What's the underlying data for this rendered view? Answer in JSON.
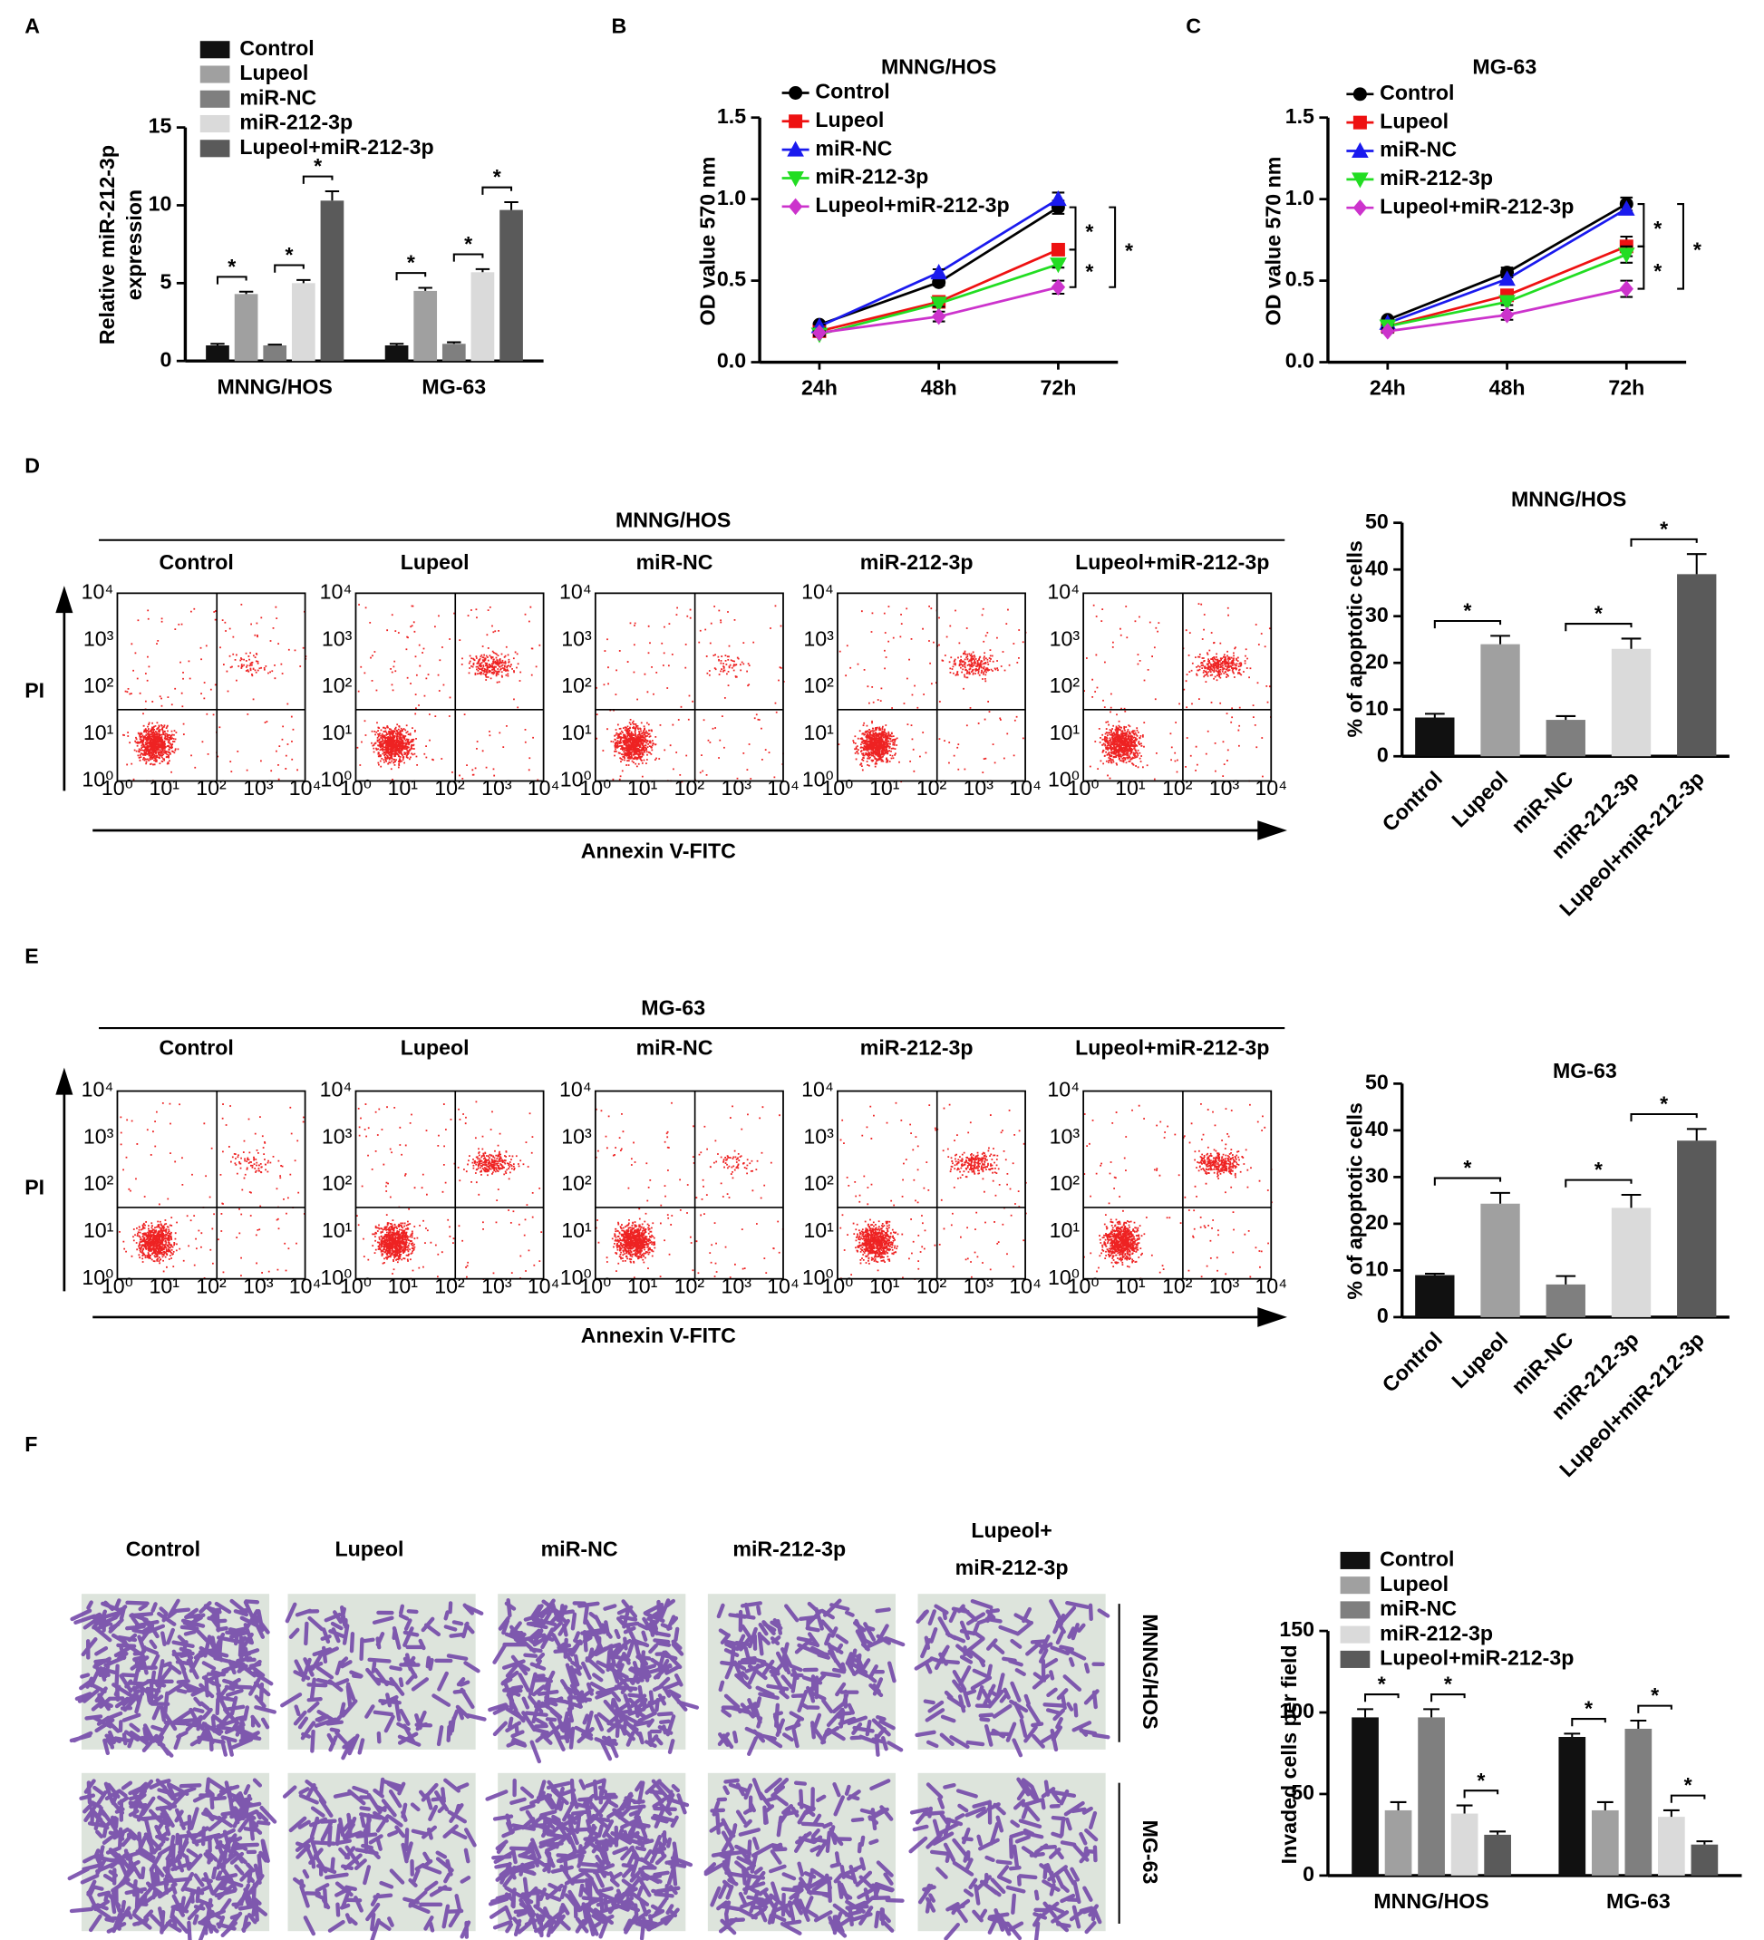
{
  "chart_data": [
    {
      "type": "bar",
      "ylabel": [
        "Relative miR-212-3p",
        "expression"
      ],
      "categories": [
        "MNNG/HOS",
        "MG-63"
      ],
      "series": [
        {
          "name": "Control",
          "color": "#111111",
          "values": [
            1.0,
            1.0
          ],
          "errors": [
            0.1,
            0.1
          ]
        },
        {
          "name": "Lupeol",
          "color": "#a0a0a0",
          "values": [
            4.3,
            4.5
          ],
          "errors": [
            0.15,
            0.2
          ]
        },
        {
          "name": "miR-NC",
          "color": "#7f7f7f",
          "values": [
            1.0,
            1.1
          ],
          "errors": [
            0.05,
            0.1
          ]
        },
        {
          "name": "miR-212-3p",
          "color": "#dadada",
          "values": [
            5.0,
            5.7
          ],
          "errors": [
            0.2,
            0.2
          ]
        },
        {
          "name": "Lupeol+miR-212-3p",
          "color": "#5a5a5a",
          "values": [
            10.3,
            9.7
          ],
          "errors": [
            0.6,
            0.5
          ]
        }
      ],
      "ylim": [
        0,
        15
      ],
      "yticks": [
        0,
        5,
        10,
        15
      ],
      "legend": "upper left",
      "significance": [
        {
          "category": 0,
          "between": [
            0,
            1
          ],
          "label": "*"
        },
        {
          "category": 0,
          "between": [
            2,
            3
          ],
          "label": "*"
        },
        {
          "category": 0,
          "between": [
            3,
            4
          ],
          "label": "*"
        },
        {
          "category": 1,
          "between": [
            0,
            1
          ],
          "label": "*"
        },
        {
          "category": 1,
          "between": [
            2,
            3
          ],
          "label": "*"
        },
        {
          "category": 1,
          "between": [
            3,
            4
          ],
          "label": "*"
        }
      ]
    },
    {
      "type": "line",
      "title": "MNNG/HOS",
      "ylabel": "OD value 570 nm",
      "categories": [
        "24h",
        "48h",
        "72h"
      ],
      "series": [
        {
          "name": "Control",
          "color": "#000000",
          "marker": "circle",
          "values": [
            0.23,
            0.49,
            0.95
          ],
          "errors": [
            0.01,
            0.02,
            0.04
          ]
        },
        {
          "name": "Lupeol",
          "color": "#ee1111",
          "marker": "square",
          "values": [
            0.19,
            0.37,
            0.69
          ],
          "errors": [
            0.01,
            0.02,
            0.02
          ]
        },
        {
          "name": "miR-NC",
          "color": "#1a1aee",
          "marker": "triangle",
          "values": [
            0.22,
            0.55,
            1.0
          ],
          "errors": [
            0.01,
            0.02,
            0.04
          ]
        },
        {
          "name": "miR-212-3p",
          "color": "#22dd22",
          "marker": "triangle-down",
          "values": [
            0.17,
            0.36,
            0.6
          ],
          "errors": [
            0.01,
            0.02,
            0.02
          ]
        },
        {
          "name": "Lupeol+miR-212-3p",
          "color": "#cc33cc",
          "marker": "diamond",
          "values": [
            0.18,
            0.28,
            0.46
          ],
          "errors": [
            0.01,
            0.03,
            0.04
          ]
        }
      ],
      "ylim": [
        0,
        1.5
      ],
      "yticks": [
        {
          "value": 0,
          "label": "0.0"
        },
        0.5,
        {
          "value": 1,
          "label": "1.0"
        },
        1.5
      ],
      "legend": "upper left",
      "significance": [
        {
          "between": [
            0,
            1
          ],
          "label": "*"
        },
        {
          "between": [
            1,
            4
          ],
          "label": "*"
        },
        {
          "between": [
            0,
            4
          ],
          "label": "*"
        }
      ]
    },
    {
      "type": "line",
      "title": "MG-63",
      "ylabel": "OD value 570 nm",
      "categories": [
        "24h",
        "48h",
        "72h"
      ],
      "series": [
        {
          "name": "Control",
          "color": "#000000",
          "marker": "circle",
          "values": [
            0.26,
            0.55,
            0.97
          ],
          "errors": [
            0.01,
            0.03,
            0.04
          ]
        },
        {
          "name": "Lupeol",
          "color": "#ee1111",
          "marker": "square",
          "values": [
            0.22,
            0.41,
            0.71
          ],
          "errors": [
            0.01,
            0.02,
            0.06
          ]
        },
        {
          "name": "miR-NC",
          "color": "#1a1aee",
          "marker": "triangle",
          "values": [
            0.24,
            0.51,
            0.94
          ],
          "errors": [
            0.01,
            0.02,
            0.03
          ]
        },
        {
          "name": "miR-212-3p",
          "color": "#22dd22",
          "marker": "triangle-down",
          "values": [
            0.22,
            0.37,
            0.66
          ],
          "errors": [
            0.01,
            0.02,
            0.05
          ]
        },
        {
          "name": "Lupeol+miR-212-3p",
          "color": "#cc33cc",
          "marker": "diamond",
          "values": [
            0.19,
            0.29,
            0.45
          ],
          "errors": [
            0.01,
            0.03,
            0.05
          ]
        }
      ],
      "ylim": [
        0,
        1.5
      ],
      "yticks": [
        {
          "value": 0,
          "label": "0.0"
        },
        0.5,
        {
          "value": 1,
          "label": "1.0"
        },
        1.5
      ],
      "legend": "upper left",
      "significance": [
        {
          "between": [
            0,
            1
          ],
          "label": "*"
        },
        {
          "between": [
            1,
            4
          ],
          "label": "*"
        },
        {
          "between": [
            0,
            4
          ],
          "label": "*"
        }
      ]
    },
    {
      "type": "bar",
      "title": "MNNG/HOS",
      "ylabel": "% of apoptotic cells",
      "categories": [
        "Control",
        "Lupeol",
        "miR-NC",
        "miR-212-3p",
        "Lupeol+miR-212-3p"
      ],
      "values": [
        8.3,
        24,
        7.8,
        23,
        39
      ],
      "errors": [
        0.8,
        1.8,
        0.8,
        2.2,
        4.3
      ],
      "colors": [
        "#111111",
        "#a0a0a0",
        "#7f7f7f",
        "#dadada",
        "#5a5a5a"
      ],
      "ylim": [
        0,
        50
      ],
      "yticks": [
        0,
        10,
        20,
        30,
        40,
        50
      ],
      "xtick_rotation": -45,
      "significance": [
        {
          "between": [
            0,
            1
          ],
          "label": "*"
        },
        {
          "between": [
            2,
            3
          ],
          "label": "*"
        },
        {
          "between": [
            3,
            4
          ],
          "label": "*"
        }
      ]
    },
    {
      "type": "bar",
      "title": "MG-63",
      "ylabel": "% of apoptotic cells",
      "categories": [
        "Control",
        "Lupeol",
        "miR-NC",
        "miR-212-3p",
        "Lupeol+miR-212-3p"
      ],
      "values": [
        9,
        24.3,
        7,
        23.4,
        37.8
      ],
      "errors": [
        0.3,
        2.3,
        1.8,
        2.8,
        2.5
      ],
      "colors": [
        "#111111",
        "#a0a0a0",
        "#7f7f7f",
        "#dadada",
        "#5a5a5a"
      ],
      "ylim": [
        0,
        50
      ],
      "yticks": [
        0,
        10,
        20,
        30,
        40,
        50
      ],
      "xtick_rotation": -45,
      "significance": [
        {
          "between": [
            0,
            1
          ],
          "label": "*"
        },
        {
          "between": [
            2,
            3
          ],
          "label": "*"
        },
        {
          "between": [
            3,
            4
          ],
          "label": "*"
        }
      ]
    },
    {
      "type": "bar",
      "ylabel": "Invaded cells per field",
      "categories": [
        "MNNG/HOS",
        "MG-63"
      ],
      "series": [
        {
          "name": "Control",
          "color": "#111111",
          "values": [
            97,
            85
          ],
          "errors": [
            5,
            2
          ]
        },
        {
          "name": "Lupeol",
          "color": "#a0a0a0",
          "values": [
            40,
            40
          ],
          "errors": [
            5,
            5
          ]
        },
        {
          "name": "miR-NC",
          "color": "#7f7f7f",
          "values": [
            97,
            90
          ],
          "errors": [
            5,
            5
          ]
        },
        {
          "name": "miR-212-3p",
          "color": "#dadada",
          "values": [
            38,
            36
          ],
          "errors": [
            5,
            4
          ]
        },
        {
          "name": "Lupeol+miR-212-3p",
          "color": "#5a5a5a",
          "values": [
            25,
            19
          ],
          "errors": [
            2,
            2
          ]
        }
      ],
      "ylim": [
        0,
        150
      ],
      "yticks": [
        0,
        50,
        100,
        150
      ],
      "legend": "upper left",
      "significance": [
        {
          "category": 0,
          "between": [
            0,
            1
          ],
          "label": "*"
        },
        {
          "category": 0,
          "between": [
            2,
            3
          ],
          "label": "*"
        },
        {
          "category": 0,
          "between": [
            3,
            4
          ],
          "label": "*"
        },
        {
          "category": 1,
          "between": [
            0,
            1
          ],
          "label": "*"
        },
        {
          "category": 1,
          "between": [
            2,
            3
          ],
          "label": "*"
        },
        {
          "category": 1,
          "between": [
            3,
            4
          ],
          "label": "*"
        }
      ]
    }
  ],
  "figure": {
    "panel_labels": [
      "A",
      "B",
      "C",
      "D",
      "E",
      "F"
    ],
    "flow": [
      {
        "title": "MNNG/HOS",
        "columns": [
          "Control",
          "Lupeol",
          "miR-NC",
          "miR-212-3p",
          "Lupeol+miR-212-3p"
        ],
        "y_label": "PI",
        "x_label": "Annexin V-FITC"
      },
      {
        "title": "MG-63",
        "columns": [
          "Control",
          "Lupeol",
          "miR-NC",
          "miR-212-3p",
          "Lupeol+miR-212-3p"
        ],
        "y_label": "PI",
        "x_label": "Annexin V-FITC"
      }
    ],
    "flow_ticks": [
      "10⁰",
      "10¹",
      "10²",
      "10³",
      "10⁴"
    ],
    "invasion": {
      "columns": [
        "Control",
        "Lupeol",
        "miR-NC",
        "miR-212-3p",
        [
          "Lupeol+",
          "miR-212-3p"
        ]
      ],
      "rows": [
        "MNNG/HOS",
        "MG-63"
      ]
    }
  }
}
